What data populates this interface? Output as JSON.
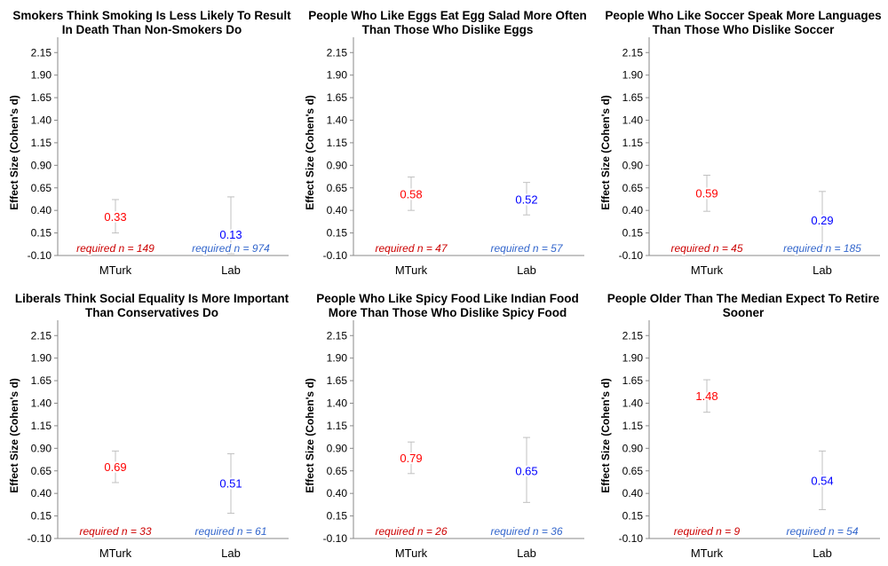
{
  "chart_data": [
    {
      "type": "scatter",
      "title": "Smokers Think Smoking Is Less Likely To Result In Death Than Non-Smokers Do",
      "ylabel": "Effect Size (Cohen's d)",
      "xlabel": "",
      "ylim": [
        -0.1,
        2.3
      ],
      "yticks": [
        "-0.10",
        "0.15",
        "0.40",
        "0.65",
        "0.90",
        "1.15",
        "1.40",
        "1.65",
        "1.90",
        "2.15"
      ],
      "categories": [
        "MTurk",
        "Lab"
      ],
      "points": [
        {
          "category": "MTurk",
          "value": 0.33,
          "label": "0.33",
          "err_low": 0.15,
          "err_high": 0.52,
          "note": "required n = 149",
          "color": "#ff0000"
        },
        {
          "category": "Lab",
          "value": 0.13,
          "label": "0.13",
          "err_low": -0.08,
          "err_high": 0.55,
          "note": "required n = 974",
          "color": "#0000ff"
        }
      ]
    },
    {
      "type": "scatter",
      "title": "People Who Like Eggs Eat Egg Salad More Often Than Those Who Dislike Eggs",
      "ylabel": "Effect Size (Cohen's d)",
      "xlabel": "",
      "ylim": [
        -0.1,
        2.3
      ],
      "yticks": [
        "-0.10",
        "0.15",
        "0.40",
        "0.65",
        "0.90",
        "1.15",
        "1.40",
        "1.65",
        "1.90",
        "2.15"
      ],
      "categories": [
        "MTurk",
        "Lab"
      ],
      "points": [
        {
          "category": "MTurk",
          "value": 0.58,
          "label": "0.58",
          "err_low": 0.4,
          "err_high": 0.77,
          "note": "required n = 47",
          "color": "#ff0000"
        },
        {
          "category": "Lab",
          "value": 0.52,
          "label": "0.52",
          "err_low": 0.35,
          "err_high": 0.71,
          "note": "required n = 57",
          "color": "#0000ff"
        }
      ]
    },
    {
      "type": "scatter",
      "title": "People Who Like Soccer Speak More Languages Than Those Who Dislike Soccer",
      "ylabel": "Effect Size (Cohen's d)",
      "xlabel": "",
      "ylim": [
        -0.1,
        2.3
      ],
      "yticks": [
        "-0.10",
        "0.15",
        "0.40",
        "0.65",
        "0.90",
        "1.15",
        "1.40",
        "1.65",
        "1.90",
        "2.15"
      ],
      "categories": [
        "MTurk",
        "Lab"
      ],
      "points": [
        {
          "category": "MTurk",
          "value": 0.59,
          "label": "0.59",
          "err_low": 0.39,
          "err_high": 0.79,
          "note": "required n = 45",
          "color": "#ff0000"
        },
        {
          "category": "Lab",
          "value": 0.29,
          "label": "0.29",
          "err_low": 0.0,
          "err_high": 0.61,
          "note": "required n = 185",
          "color": "#0000ff"
        }
      ]
    },
    {
      "type": "scatter",
      "title": "Liberals Think Social Equality Is More Important Than Conservatives Do",
      "ylabel": "Effect Size (Cohen's d)",
      "xlabel": "",
      "ylim": [
        -0.1,
        2.3
      ],
      "yticks": [
        "-0.10",
        "0.15",
        "0.40",
        "0.65",
        "0.90",
        "1.15",
        "1.40",
        "1.65",
        "1.90",
        "2.15"
      ],
      "categories": [
        "MTurk",
        "Lab"
      ],
      "points": [
        {
          "category": "MTurk",
          "value": 0.69,
          "label": "0.69",
          "err_low": 0.52,
          "err_high": 0.87,
          "note": "required n = 33",
          "color": "#ff0000"
        },
        {
          "category": "Lab",
          "value": 0.51,
          "label": "0.51",
          "err_low": 0.18,
          "err_high": 0.84,
          "note": "required n = 61",
          "color": "#0000ff"
        }
      ]
    },
    {
      "type": "scatter",
      "title": "People Who Like Spicy Food Like Indian Food More Than Those Who Dislike Spicy Food",
      "ylabel": "Effect Size (Cohen's d)",
      "xlabel": "",
      "ylim": [
        -0.1,
        2.3
      ],
      "yticks": [
        "-0.10",
        "0.15",
        "0.40",
        "0.65",
        "0.90",
        "1.15",
        "1.40",
        "1.65",
        "1.90",
        "2.15"
      ],
      "categories": [
        "MTurk",
        "Lab"
      ],
      "points": [
        {
          "category": "MTurk",
          "value": 0.79,
          "label": "0.79",
          "err_low": 0.62,
          "err_high": 0.97,
          "note": "required n = 26",
          "color": "#ff0000"
        },
        {
          "category": "Lab",
          "value": 0.65,
          "label": "0.65",
          "err_low": 0.3,
          "err_high": 1.02,
          "note": "required n = 36",
          "color": "#0000ff"
        }
      ]
    },
    {
      "type": "scatter",
      "title": "People Older Than The Median Expect To Retire Sooner",
      "ylabel": "Effect Size (Cohen's d)",
      "xlabel": "",
      "ylim": [
        -0.1,
        2.3
      ],
      "yticks": [
        "-0.10",
        "0.15",
        "0.40",
        "0.65",
        "0.90",
        "1.15",
        "1.40",
        "1.65",
        "1.90",
        "2.15"
      ],
      "categories": [
        "MTurk",
        "Lab"
      ],
      "points": [
        {
          "category": "MTurk",
          "value": 1.48,
          "label": "1.48",
          "err_low": 1.3,
          "err_high": 1.66,
          "note": "required n = 9",
          "color": "#ff0000"
        },
        {
          "category": "Lab",
          "value": 0.54,
          "label": "0.54",
          "err_low": 0.22,
          "err_high": 0.87,
          "note": "required n = 54",
          "color": "#0000ff"
        }
      ]
    }
  ],
  "colors": {
    "mturk_note": "#cc0000",
    "lab_note": "#3366cc",
    "errorbar": "#c0c0c0",
    "axis": "#888888"
  }
}
